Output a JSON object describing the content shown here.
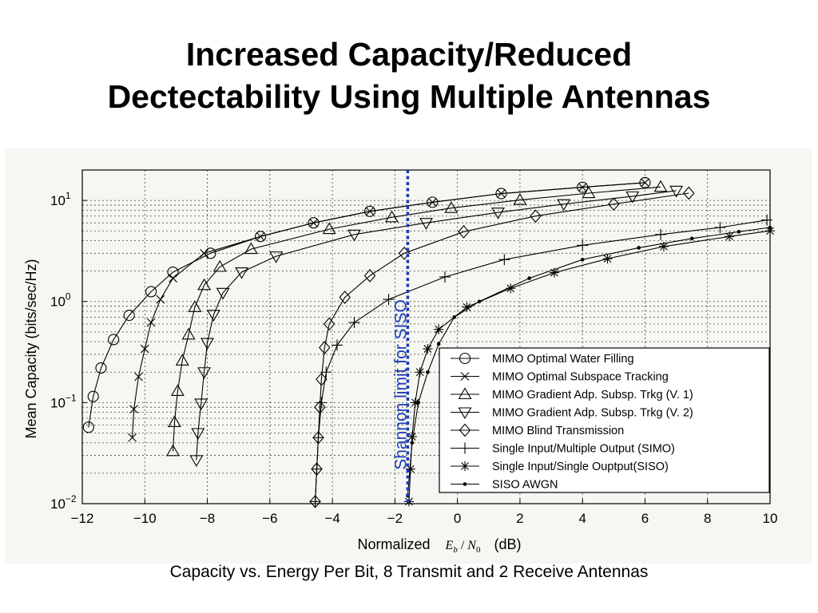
{
  "slide": {
    "title_line1": "Increased Capacity/Reduced",
    "title_line2": "Dectectability Using Multiple Antennas",
    "caption": "Capacity vs. Energy Per Bit, 8 Transmit and 2 Receive Antennas"
  },
  "chart_data": {
    "type": "line",
    "ylabel": "Mean Capacity (bits/sec/Hz)",
    "xlabel_prefix": "Normalized",
    "xlabel_E": "E",
    "xlabel_b": "b",
    "xlabel_slash": " / ",
    "xlabel_N": "N",
    "xlabel_0": "0",
    "xlabel_units": "(dB)",
    "xlim": [
      -12,
      10
    ],
    "ylim": [
      0.01,
      20
    ],
    "yscale": "log",
    "grid": true,
    "legend_position": "lower-right",
    "x_ticks": [
      -12,
      -10,
      -8,
      -6,
      -4,
      -2,
      0,
      2,
      4,
      6,
      8,
      10
    ],
    "x_tick_labels": [
      "−12",
      "−10",
      "−8",
      "−6",
      "−4",
      "−2",
      "0",
      "2",
      "4",
      "6",
      "8",
      "10"
    ],
    "y_ticks": [
      {
        "value": 0.01,
        "mantissa": "10",
        "exponent": "−2"
      },
      {
        "value": 0.1,
        "mantissa": "10",
        "exponent": "−1"
      },
      {
        "value": 1,
        "mantissa": "10",
        "exponent": "0"
      },
      {
        "value": 10,
        "mantissa": "10",
        "exponent": "1"
      }
    ],
    "annotation": {
      "text": "Shannon limit for SISO",
      "x": -1.59,
      "color": "#1a3ab8"
    },
    "series": [
      {
        "name": "MIMO Optimal Water Filling",
        "marker": "circle",
        "x": [
          -11.8,
          -11.65,
          -11.4,
          -11.0,
          -10.5,
          -9.8,
          -9.1,
          -7.9,
          -6.3,
          -4.6,
          -2.8,
          -0.8,
          1.4,
          4.0,
          6.0
        ],
        "y": [
          0.057,
          0.115,
          0.22,
          0.42,
          0.73,
          1.25,
          1.95,
          3.0,
          4.4,
          6.0,
          7.8,
          9.6,
          11.7,
          13.5,
          15.0
        ]
      },
      {
        "name": "MIMO Optimal Subspace Tracking",
        "marker": "x",
        "x": [
          -10.4,
          -10.35,
          -10.2,
          -10.0,
          -9.8,
          -9.5,
          -9.1,
          -8.1,
          -6.3,
          -4.6,
          -2.8,
          -0.8,
          1.4,
          4.0,
          6.0
        ],
        "y": [
          0.045,
          0.086,
          0.18,
          0.34,
          0.62,
          1.05,
          1.7,
          3.0,
          4.4,
          6.0,
          7.8,
          9.6,
          11.7,
          13.5,
          15.0
        ]
      },
      {
        "name": "MIMO Gradient Adp. Subsp. Trkg (V. 1)",
        "marker": "triangle-up",
        "x": [
          -9.1,
          -9.05,
          -8.95,
          -8.8,
          -8.6,
          -8.4,
          -8.1,
          -7.6,
          -6.6,
          -4.1,
          -2.1,
          -0.2,
          2.0,
          4.2,
          6.5
        ],
        "y": [
          0.033,
          0.064,
          0.13,
          0.26,
          0.47,
          0.88,
          1.45,
          2.2,
          3.3,
          5.2,
          6.8,
          8.4,
          10.1,
          11.8,
          13.6
        ]
      },
      {
        "name": "MIMO Gradient Adp. Subsp. Trkg (V. 2)",
        "marker": "triangle-down",
        "x": [
          -8.35,
          -8.3,
          -8.2,
          -8.1,
          -8.0,
          -7.8,
          -7.5,
          -6.9,
          -5.8,
          -3.3,
          -1.0,
          1.3,
          3.4,
          5.6,
          7.0
        ],
        "y": [
          0.027,
          0.05,
          0.098,
          0.2,
          0.39,
          0.74,
          1.22,
          1.95,
          2.8,
          4.6,
          6.0,
          7.6,
          9.2,
          11.0,
          12.5
        ]
      },
      {
        "name": "MIMO Blind Transmission",
        "marker": "diamond",
        "x": [
          -4.55,
          -4.5,
          -4.45,
          -4.4,
          -4.35,
          -4.25,
          -4.1,
          -3.6,
          -2.8,
          -1.7,
          0.2,
          2.5,
          5.0,
          7.4
        ],
        "y": [
          0.0105,
          0.022,
          0.045,
          0.09,
          0.17,
          0.35,
          0.6,
          1.1,
          1.8,
          3.0,
          4.9,
          7.0,
          9.2,
          11.8
        ]
      },
      {
        "name": "Single Input/Multiple Output (SIMO)",
        "marker": "plus",
        "x": [
          -4.55,
          -4.5,
          -4.45,
          -4.35,
          -4.2,
          -3.85,
          -3.3,
          -2.2,
          -0.4,
          1.5,
          4.0,
          6.5,
          8.4,
          9.9
        ],
        "y": [
          0.0105,
          0.022,
          0.045,
          0.1,
          0.2,
          0.37,
          0.62,
          1.05,
          1.75,
          2.6,
          3.6,
          4.6,
          5.4,
          6.4
        ]
      },
      {
        "name": "Single Input/Single Ouptput(SISO)",
        "marker": "star",
        "x": [
          -1.55,
          -1.5,
          -1.45,
          -1.35,
          -1.2,
          -0.95,
          -0.6,
          0.3,
          1.7,
          3.1,
          4.8,
          6.6,
          8.7,
          10.0
        ],
        "y": [
          0.0105,
          0.022,
          0.046,
          0.1,
          0.2,
          0.34,
          0.53,
          0.88,
          1.35,
          1.93,
          2.65,
          3.5,
          4.4,
          5.0
        ]
      },
      {
        "name": "SISO AWGN",
        "marker": "dot",
        "x": [
          -1.59,
          -1.45,
          -1.25,
          -0.95,
          -0.6,
          -0.1,
          0.7,
          2.3,
          4.0,
          5.8,
          7.5,
          9.0,
          10.0
        ],
        "y": [
          0.012,
          0.04,
          0.1,
          0.2,
          0.38,
          0.7,
          1.0,
          1.7,
          2.6,
          3.4,
          4.2,
          4.9,
          5.4
        ]
      }
    ]
  }
}
